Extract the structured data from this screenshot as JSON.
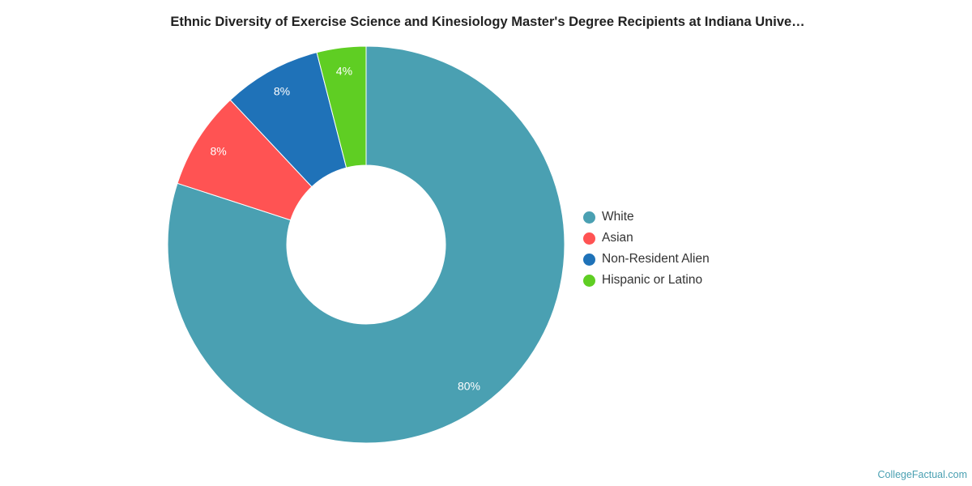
{
  "chart_data": {
    "type": "pie",
    "variant": "donut",
    "title": "Ethnic Diversity of Exercise Science and Kinesiology Master's Degree Recipients at Indiana Unive…",
    "categories": [
      "White",
      "Asian",
      "Non-Resident Alien",
      "Hispanic or Latino"
    ],
    "values": [
      80,
      8,
      8,
      4
    ],
    "labels": [
      "80%",
      "8%",
      "8%",
      "4%"
    ],
    "colors": [
      "#4aa0b2",
      "#ff5353",
      "#1f72b8",
      "#5fce23"
    ],
    "legend_position": "right"
  },
  "credit": "CollegeFactual.com"
}
